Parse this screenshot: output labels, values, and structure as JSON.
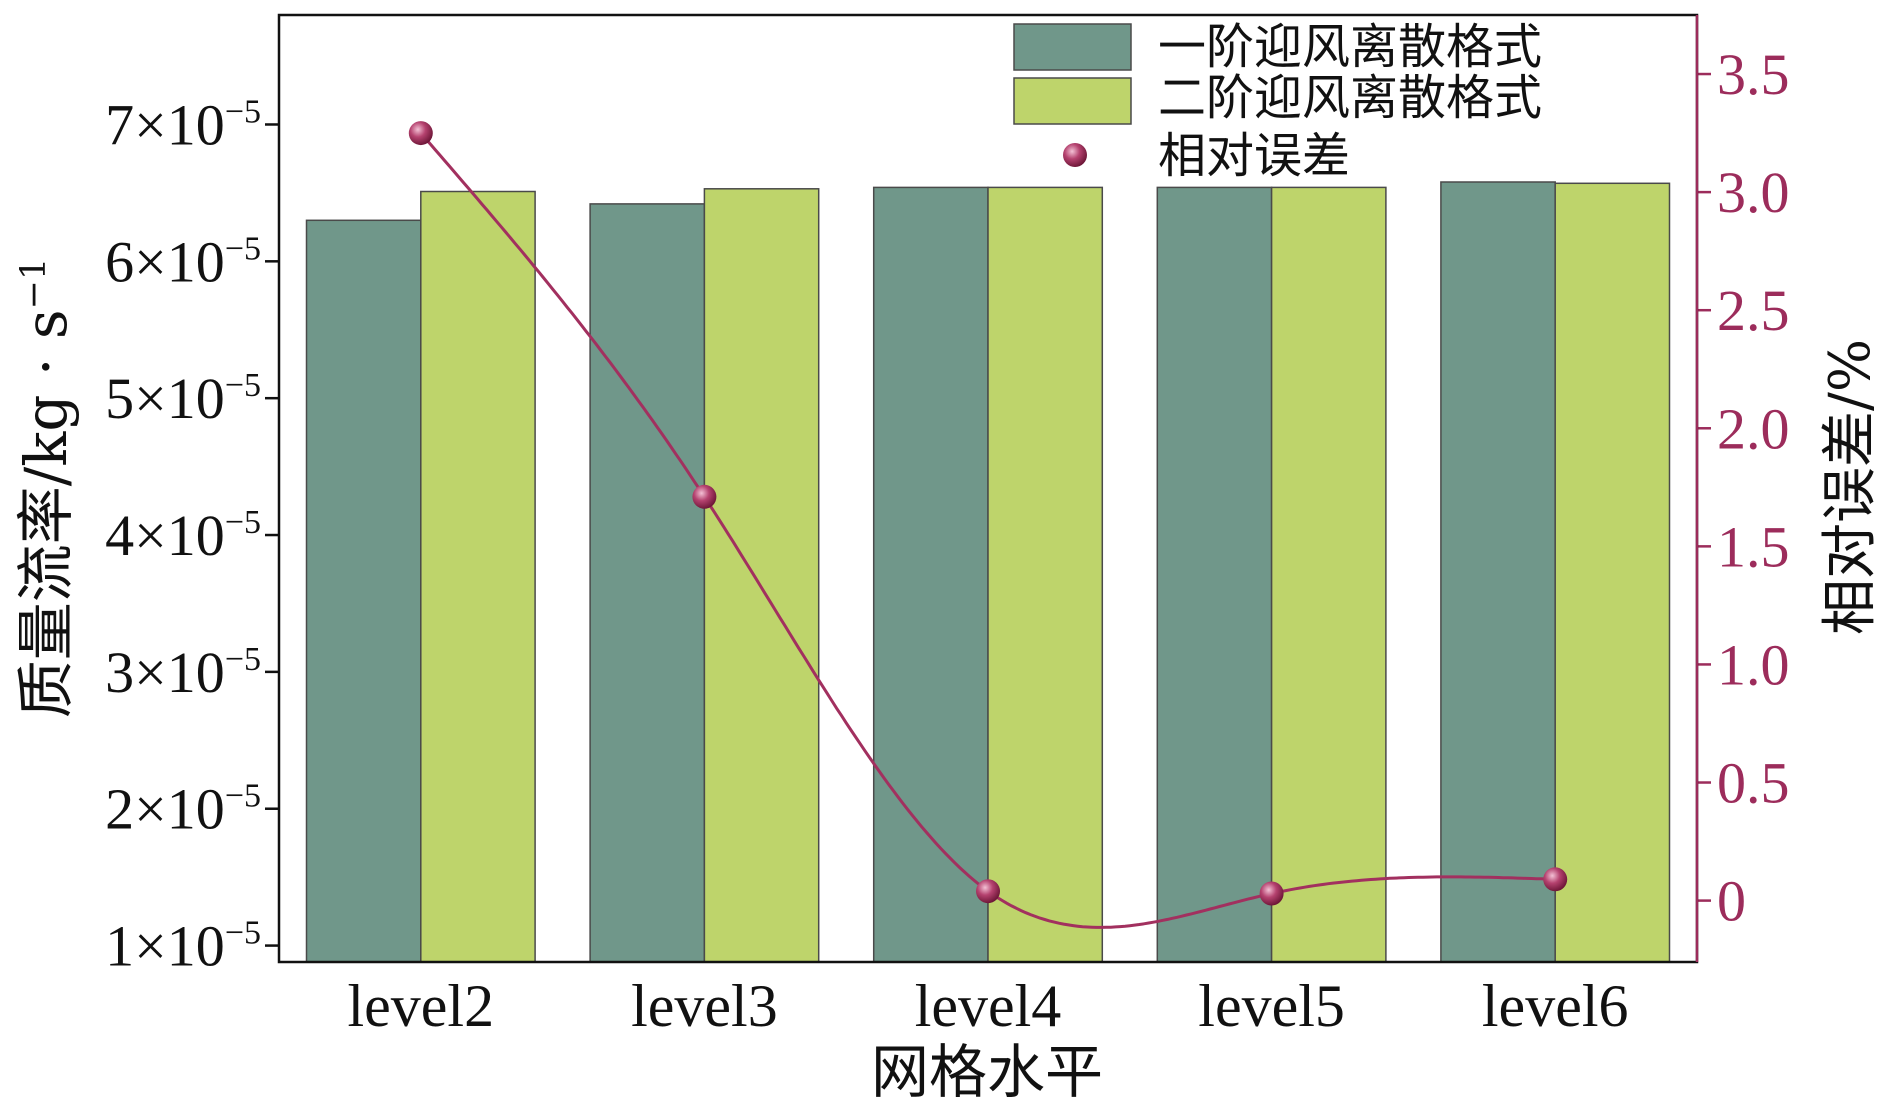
{
  "chart_data": {
    "type": "bar",
    "categories": [
      "level2",
      "level3",
      "level4",
      "level5",
      "level6"
    ],
    "xlabel": "网格水平",
    "ylabel": "质量流率/kg · s",
    "ylabel_superscript": "−1",
    "ylabel_right": "相对误差/%",
    "ylim": [
      8.8e-06,
      7.8e-05
    ],
    "ylim_right": [
      -0.26,
      3.75
    ],
    "yticks": [
      {
        "value": 7e-05,
        "mantissa": "7×10",
        "exponent": "−5"
      },
      {
        "value": 6e-05,
        "mantissa": "6×10",
        "exponent": "−5"
      },
      {
        "value": 5e-05,
        "mantissa": "5×10",
        "exponent": "−5"
      },
      {
        "value": 4e-05,
        "mantissa": "4×10",
        "exponent": "−5"
      },
      {
        "value": 3e-05,
        "mantissa": "3×10",
        "exponent": "−5"
      },
      {
        "value": 2e-05,
        "mantissa": "2×10",
        "exponent": "−5"
      },
      {
        "value": 1e-05,
        "mantissa": "1×10",
        "exponent": "−5"
      }
    ],
    "yticks_right": [
      {
        "value": 3.5,
        "label": "3.5"
      },
      {
        "value": 3.0,
        "label": "3.0"
      },
      {
        "value": 2.5,
        "label": "2.5"
      },
      {
        "value": 2.0,
        "label": "2.0"
      },
      {
        "value": 1.5,
        "label": "1.5"
      },
      {
        "value": 1.0,
        "label": "1.0"
      },
      {
        "value": 0.5,
        "label": "0.5"
      },
      {
        "value": 0,
        "label": "0"
      }
    ],
    "series": [
      {
        "name": "一阶迎风离散格式",
        "color": "#70978a",
        "values": [
          6.3e-05,
          6.42e-05,
          6.54e-05,
          6.54e-05,
          6.58e-05
        ]
      },
      {
        "name": "二阶迎风离散格式",
        "color": "#bed46b",
        "values": [
          6.51e-05,
          6.53e-05,
          6.54e-05,
          6.54e-05,
          6.57e-05
        ]
      },
      {
        "name": "相对误差",
        "type": "line",
        "secondary_axis": true,
        "smooth": true,
        "color": "#a2305f",
        "values": [
          3.25,
          1.71,
          0.04,
          0.03,
          0.09
        ]
      }
    ],
    "right_axis_color": "#9c2c5b",
    "legend": "top-right",
    "grid": false
  }
}
